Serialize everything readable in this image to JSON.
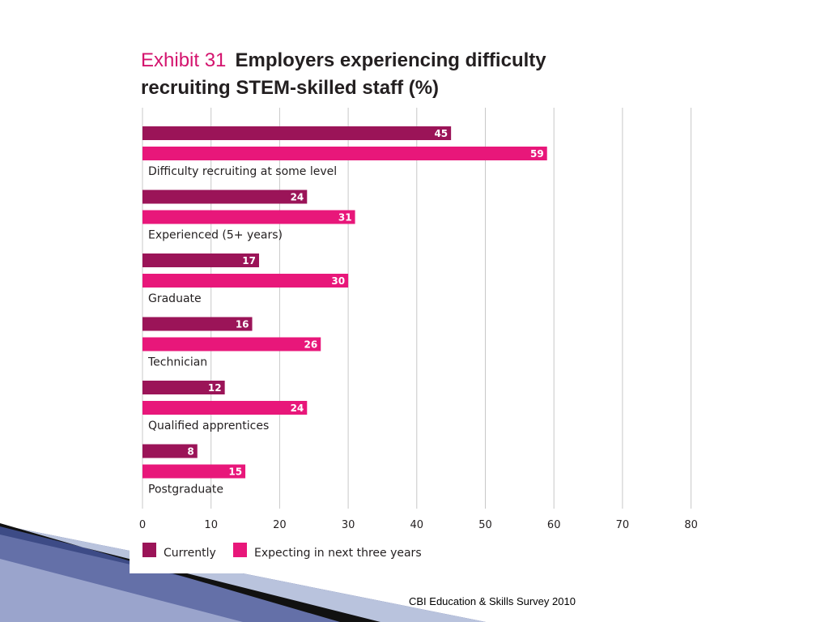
{
  "slide": {
    "source": "CBI Education & Skills Survey 2010"
  },
  "chart_data": {
    "type": "bar",
    "orientation": "horizontal",
    "title_prefix": "Exhibit 31",
    "title_line1": "Employers experiencing difficulty",
    "title_line2": "recruiting STEM-skilled staff (%)",
    "categories": [
      "Difficulty recruiting at some level",
      "Experienced (5+ years)",
      "Graduate",
      "Technician",
      "Qualified apprentices",
      "Postgraduate"
    ],
    "series": [
      {
        "name": "Currently",
        "color": "#9b1458",
        "values": [
          45,
          24,
          17,
          16,
          12,
          8
        ]
      },
      {
        "name": "Expecting in next three years",
        "color": "#e8177a",
        "values": [
          59,
          31,
          30,
          26,
          24,
          15
        ]
      }
    ],
    "xlim": [
      0,
      80
    ],
    "xticks": [
      0,
      10,
      20,
      30,
      40,
      50,
      60,
      70,
      80
    ],
    "grid": true,
    "legend_position": "bottom-left"
  }
}
